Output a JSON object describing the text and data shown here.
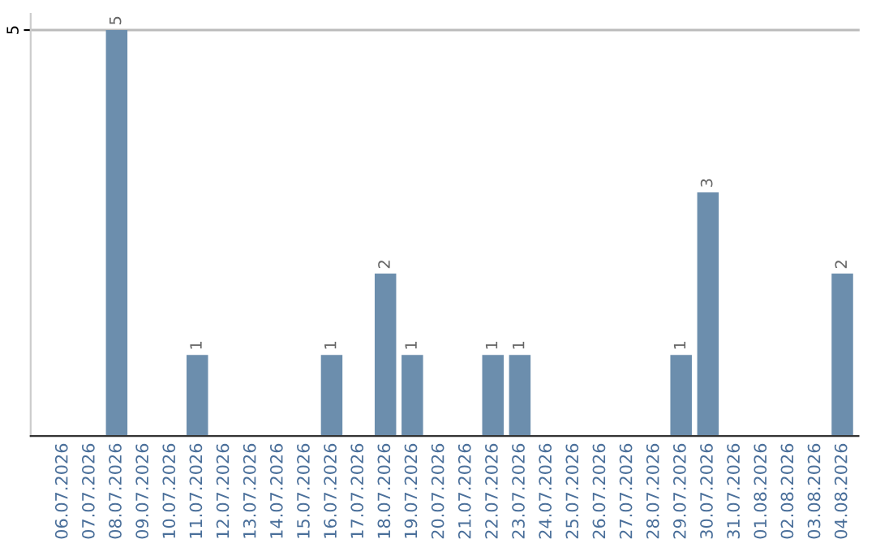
{
  "chart_data": {
    "type": "bar",
    "categories": [
      "06.07.2026",
      "07.07.2026",
      "08.07.2026",
      "09.07.2026",
      "10.07.2026",
      "11.07.2026",
      "12.07.2026",
      "13.07.2026",
      "14.07.2026",
      "15.07.2026",
      "16.07.2026",
      "17.07.2026",
      "18.07.2026",
      "19.07.2026",
      "20.07.2026",
      "21.07.2026",
      "22.07.2026",
      "23.07.2026",
      "24.07.2026",
      "25.07.2026",
      "26.07.2026",
      "27.07.2026",
      "28.07.2026",
      "29.07.2026",
      "30.07.2026",
      "31.07.2026",
      "01.08.2026",
      "02.08.2026",
      "03.08.2026",
      "04.08.2026"
    ],
    "values": [
      0,
      0,
      5,
      0,
      0,
      1,
      0,
      0,
      0,
      0,
      1,
      0,
      2,
      1,
      0,
      0,
      1,
      1,
      0,
      0,
      0,
      0,
      0,
      1,
      3,
      0,
      0,
      0,
      0,
      2
    ],
    "value_labels": [
      null,
      null,
      "5",
      null,
      null,
      "1",
      null,
      null,
      null,
      null,
      "1",
      null,
      "2",
      "1",
      null,
      null,
      "1",
      "1",
      null,
      null,
      null,
      null,
      null,
      "1",
      "3",
      null,
      null,
      null,
      null,
      "2"
    ],
    "color": "#6c8ead",
    "ylim": [
      0,
      5.2
    ],
    "yticks": [
      5
    ],
    "grid": "y"
  }
}
